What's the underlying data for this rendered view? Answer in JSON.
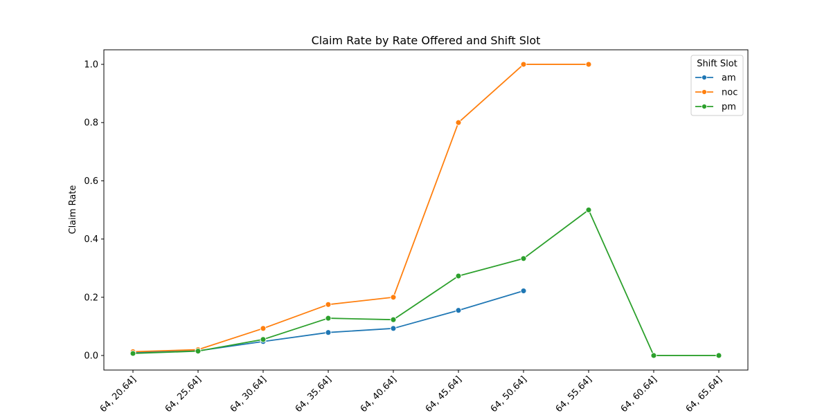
{
  "chart_data": {
    "type": "line",
    "title": "Claim Rate by Rate Offered and Shift Slot",
    "xlabel": "",
    "ylabel": "Claim Rate",
    "categories": [
      "64, 20.64]",
      "64, 25.64]",
      "64, 30.64]",
      "64, 35.64]",
      "64, 40.64]",
      "64, 45.64]",
      "64, 50.64]",
      "64, 55.64]",
      "64, 60.64]",
      "64, 65.64]"
    ],
    "ylim": [
      -0.05,
      1.05
    ],
    "yticks": [
      "0.0",
      "0.2",
      "0.4",
      "0.6",
      "0.8",
      "1.0"
    ],
    "legend": {
      "title": "Shift Slot",
      "placement": "top-right"
    },
    "grid": false,
    "series": [
      {
        "name": "am",
        "color": "#1f77b4",
        "values": [
          0.01,
          0.016,
          0.048,
          0.079,
          0.093,
          0.155,
          0.222,
          null,
          null,
          null
        ]
      },
      {
        "name": "noc",
        "color": "#ff7f0e",
        "values": [
          0.013,
          0.02,
          0.093,
          0.175,
          0.2,
          0.8,
          1.0,
          1.0,
          null,
          null
        ]
      },
      {
        "name": "pm",
        "color": "#2ca02c",
        "values": [
          0.007,
          0.015,
          0.055,
          0.128,
          0.123,
          0.273,
          0.333,
          0.5,
          0.0,
          0.0
        ]
      }
    ]
  }
}
